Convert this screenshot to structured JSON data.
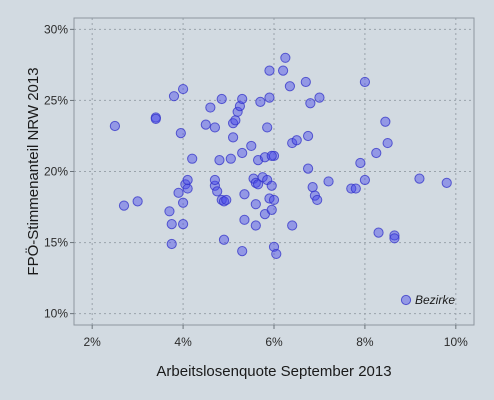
{
  "chart_data": {
    "type": "scatter",
    "xlabel": "Arbeitslosenquote September 2013",
    "ylabel": "FPÖ-Stimmenanteil NRW 2013",
    "xlim": [
      1.6,
      10.4
    ],
    "ylim": [
      9.2,
      30.8
    ],
    "x_ticks": [
      2,
      4,
      6,
      8,
      10
    ],
    "y_ticks": [
      10,
      15,
      20,
      25,
      30
    ],
    "x_tick_labels": [
      "2%",
      "4%",
      "6%",
      "8%",
      "10%"
    ],
    "y_tick_labels": [
      "10%",
      "15%",
      "20%",
      "25%",
      "30%"
    ],
    "legend": {
      "label": "Bezirke",
      "position": "bottom-right"
    },
    "grid": true,
    "colors": {
      "point": "#4646eb",
      "background": "#d2dae1",
      "grid": "#9aa3ab"
    },
    "series": [
      {
        "points": [
          [
            2.5,
            23.2
          ],
          [
            2.7,
            17.6
          ],
          [
            3.0,
            17.9
          ],
          [
            3.4,
            23.8
          ],
          [
            3.4,
            23.7
          ],
          [
            3.7,
            17.2
          ],
          [
            3.75,
            16.3
          ],
          [
            3.8,
            25.3
          ],
          [
            3.9,
            18.5
          ],
          [
            3.75,
            14.9
          ],
          [
            4.0,
            25.8
          ],
          [
            3.95,
            22.7
          ],
          [
            4.0,
            16.3
          ],
          [
            4.0,
            17.8
          ],
          [
            4.05,
            19.1
          ],
          [
            4.1,
            18.8
          ],
          [
            4.1,
            19.4
          ],
          [
            4.2,
            20.9
          ],
          [
            4.5,
            23.3
          ],
          [
            4.6,
            24.5
          ],
          [
            4.7,
            19.0
          ],
          [
            4.7,
            19.4
          ],
          [
            4.7,
            23.1
          ],
          [
            4.75,
            18.6
          ],
          [
            4.8,
            20.8
          ],
          [
            4.85,
            25.1
          ],
          [
            4.85,
            18.0
          ],
          [
            4.9,
            17.9
          ],
          [
            4.9,
            15.2
          ],
          [
            4.95,
            18.0
          ],
          [
            5.05,
            20.9
          ],
          [
            5.1,
            22.4
          ],
          [
            5.1,
            23.4
          ],
          [
            5.15,
            23.6
          ],
          [
            5.2,
            24.2
          ],
          [
            5.25,
            24.6
          ],
          [
            5.3,
            25.1
          ],
          [
            5.3,
            21.3
          ],
          [
            5.3,
            14.4
          ],
          [
            5.35,
            18.4
          ],
          [
            5.35,
            16.6
          ],
          [
            5.5,
            21.8
          ],
          [
            5.55,
            19.5
          ],
          [
            5.6,
            19.2
          ],
          [
            5.6,
            17.7
          ],
          [
            5.65,
            19.1
          ],
          [
            5.6,
            16.2
          ],
          [
            5.65,
            20.8
          ],
          [
            5.7,
            24.9
          ],
          [
            5.75,
            19.6
          ],
          [
            5.8,
            21.0
          ],
          [
            5.8,
            17.0
          ],
          [
            5.85,
            23.1
          ],
          [
            5.85,
            19.4
          ],
          [
            5.9,
            25.2
          ],
          [
            5.9,
            27.1
          ],
          [
            5.9,
            18.1
          ],
          [
            6.0,
            21.1
          ],
          [
            5.95,
            21.1
          ],
          [
            5.95,
            19.0
          ],
          [
            5.95,
            17.3
          ],
          [
            6.0,
            18.0
          ],
          [
            6.0,
            14.7
          ],
          [
            6.05,
            14.2
          ],
          [
            6.2,
            27.1
          ],
          [
            6.25,
            28.0
          ],
          [
            6.35,
            26.0
          ],
          [
            6.4,
            22.0
          ],
          [
            6.4,
            16.2
          ],
          [
            6.5,
            22.2
          ],
          [
            6.7,
            26.3
          ],
          [
            6.75,
            22.5
          ],
          [
            6.8,
            24.8
          ],
          [
            6.75,
            20.2
          ],
          [
            6.85,
            18.9
          ],
          [
            6.9,
            18.3
          ],
          [
            6.95,
            18.0
          ],
          [
            7.0,
            25.2
          ],
          [
            7.2,
            19.3
          ],
          [
            7.7,
            18.8
          ],
          [
            7.8,
            18.8
          ],
          [
            7.9,
            20.6
          ],
          [
            8.0,
            26.3
          ],
          [
            8.0,
            19.4
          ],
          [
            8.25,
            21.3
          ],
          [
            8.3,
            15.7
          ],
          [
            8.45,
            23.5
          ],
          [
            8.5,
            22.0
          ],
          [
            8.65,
            15.5
          ],
          [
            8.65,
            15.3
          ],
          [
            9.2,
            19.5
          ],
          [
            9.8,
            19.2
          ]
        ]
      }
    ]
  }
}
